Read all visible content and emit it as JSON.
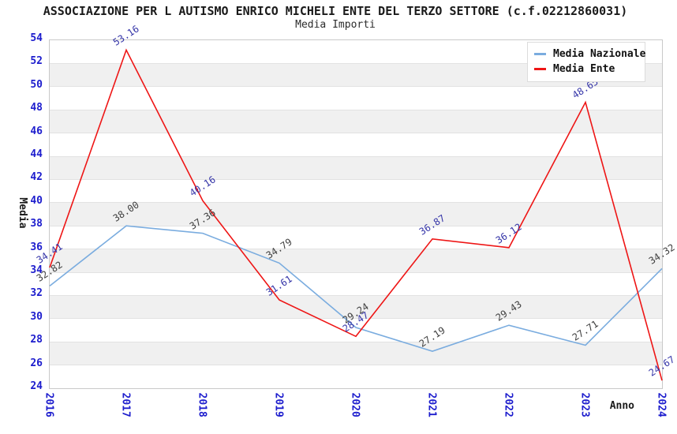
{
  "title": "ASSOCIAZIONE PER L AUTISMO ENRICO MICHELI ENTE DEL TERZO SETTORE (c.f.02212860031)",
  "subtitle": "Media Importi",
  "axes": {
    "x_title": "Anno",
    "y_title": "Media"
  },
  "legend": {
    "items": [
      {
        "label": "Media Nazionale",
        "color": "#7aacdf"
      },
      {
        "label": "Media Ente",
        "color": "#ee1515"
      }
    ]
  },
  "colors": {
    "tick_label": "#1c1ccd",
    "band_gray": "#f0f0f0",
    "plot_border": "#c9c9c9",
    "series_nazionale": "#7aacdf",
    "series_ente": "#ee1515",
    "label_nazionale": "#3f3f3f",
    "label_ente": "#3535a8"
  },
  "chart_data": {
    "type": "line",
    "categories": [
      "2016",
      "2017",
      "2018",
      "2019",
      "2020",
      "2021",
      "2022",
      "2023",
      "2024"
    ],
    "series": [
      {
        "name": "Media Nazionale",
        "color": "#7aacdf",
        "label_color": "#3f3f3f",
        "values": [
          32.82,
          38.0,
          37.36,
          34.79,
          29.24,
          27.19,
          29.43,
          27.71,
          34.32
        ]
      },
      {
        "name": "Media Ente",
        "color": "#ee1515",
        "label_color": "#3535a8",
        "values": [
          34.41,
          53.16,
          40.16,
          31.61,
          28.47,
          36.87,
          36.12,
          48.65,
          24.67
        ]
      }
    ],
    "title": "Media Importi",
    "xlabel": "Anno",
    "ylabel": "Media",
    "ylim": [
      24,
      54
    ],
    "ytick_step": 2,
    "grid": "horizontal-bands",
    "legend_position": "top-right",
    "data_labels": "values shown at each point, rotated"
  }
}
